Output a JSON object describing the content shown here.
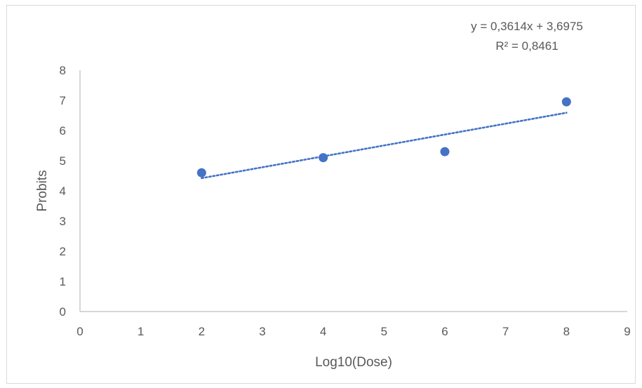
{
  "chart_data": {
    "type": "scatter",
    "title": "",
    "xlabel": "Log10(Dose)",
    "ylabel": "Probits",
    "xlim": [
      0,
      9
    ],
    "ylim": [
      0,
      8
    ],
    "x_ticks": [
      "0",
      "1",
      "2",
      "3",
      "4",
      "5",
      "6",
      "7",
      "8",
      "9"
    ],
    "y_ticks": [
      "0",
      "1",
      "2",
      "3",
      "4",
      "5",
      "6",
      "7",
      "8"
    ],
    "grid": false,
    "legend": "none",
    "series": [
      {
        "points": [
          {
            "x": 2,
            "y": 4.6
          },
          {
            "x": 4,
            "y": 5.1
          },
          {
            "x": 6,
            "y": 5.3
          },
          {
            "x": 8,
            "y": 6.95
          }
        ],
        "color": "#4472c4"
      }
    ],
    "trendline": {
      "type": "linear",
      "slope": 0.3614,
      "intercept": 3.6975,
      "x_range": [
        2,
        8
      ],
      "style": "dotted",
      "color": "#4472c4",
      "equation_label": "y = 0,3614x + 3,6975",
      "r2_label": "R² = 0,8461"
    }
  }
}
